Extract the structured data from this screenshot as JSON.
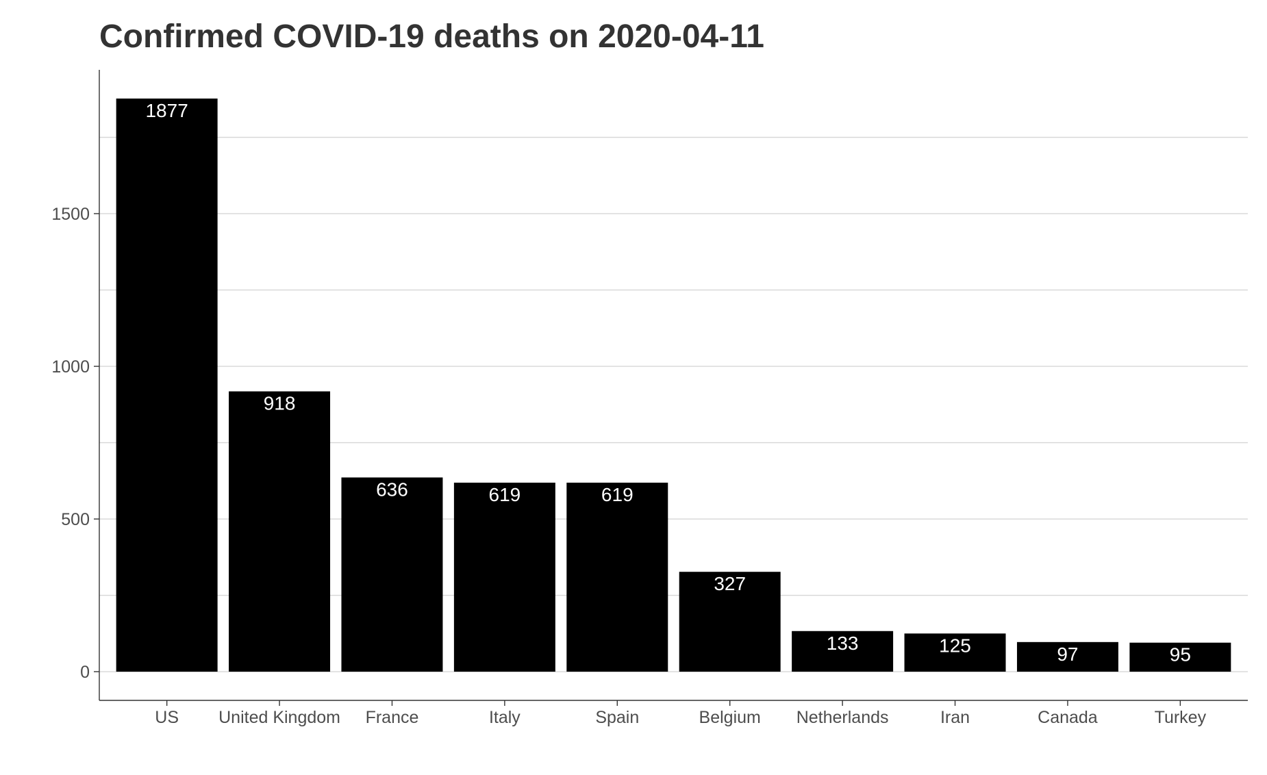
{
  "chart_data": {
    "type": "bar",
    "title": "Confirmed COVID-19 deaths on 2020-04-11",
    "xlabel": "",
    "ylabel": "",
    "categories": [
      "US",
      "United Kingdom",
      "France",
      "Italy",
      "Spain",
      "Belgium",
      "Netherlands",
      "Iran",
      "Canada",
      "Turkey"
    ],
    "values": [
      1877,
      918,
      636,
      619,
      619,
      327,
      133,
      125,
      97,
      95
    ],
    "ylim": [
      -94,
      1971
    ],
    "y_ticks": [
      0,
      500,
      1000,
      1500
    ],
    "y_tick_labels": [
      "0",
      "500",
      "1000",
      "1500"
    ],
    "minor_gridlines": [
      250,
      750,
      1250,
      1750
    ],
    "grid": "horizontal",
    "legend": "none",
    "bar_color": "#000000",
    "label_color": "#ffffff"
  }
}
